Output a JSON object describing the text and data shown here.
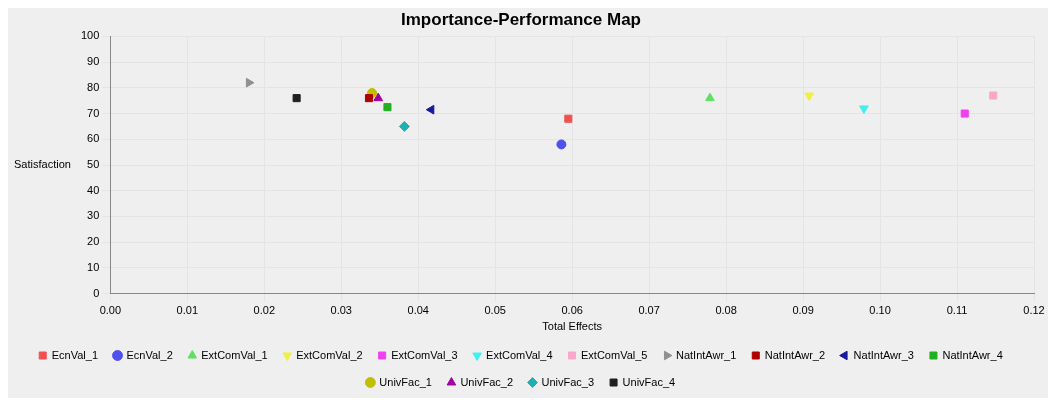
{
  "chart_data": {
    "type": "scatter",
    "title": "Importance-Performance Map",
    "xlabel": "Total Effects",
    "ylabel": "Satisfaction",
    "xlim": [
      0,
      0.12
    ],
    "xticks": [
      {
        "value": 0,
        "label": "0.00"
      },
      {
        "value": 0.01,
        "label": "0.01"
      },
      {
        "value": 0.02,
        "label": "0.02"
      },
      {
        "value": 0.03,
        "label": "0.03"
      },
      {
        "value": 0.04,
        "label": "0.04"
      },
      {
        "value": 0.05,
        "label": "0.05"
      },
      {
        "value": 0.06,
        "label": "0.06"
      },
      {
        "value": 0.07,
        "label": "0.07"
      },
      {
        "value": 0.08,
        "label": "0.08"
      },
      {
        "value": 0.09,
        "label": "0.09"
      },
      {
        "value": 0.1,
        "label": "0.10"
      },
      {
        "value": 0.11,
        "label": "0.11"
      },
      {
        "value": 0.12,
        "label": "0.12"
      }
    ],
    "ylim": [
      0,
      100
    ],
    "yticks": [
      0,
      10,
      20,
      30,
      40,
      50,
      60,
      70,
      80,
      90,
      100
    ],
    "grid": true,
    "legend": "bottom",
    "series": [
      {
        "name": "EcnVal_1",
        "color": "#f05050",
        "marker": "square",
        "x": [
          0.0595
        ],
        "values": [
          68
        ]
      },
      {
        "name": "EcnVal_2",
        "color": "#5050f0",
        "marker": "circle",
        "x": [
          0.0586
        ],
        "values": [
          58
        ]
      },
      {
        "name": "ExtComVal_1",
        "color": "#60e060",
        "marker": "triangle",
        "x": [
          0.0779
        ],
        "values": [
          76
        ]
      },
      {
        "name": "ExtComVal_2",
        "color": "#f0f040",
        "marker": "triangle-down",
        "x": [
          0.0908
        ],
        "values": [
          77
        ]
      },
      {
        "name": "ExtComVal_3",
        "color": "#f040f0",
        "marker": "square",
        "x": [
          0.111
        ],
        "values": [
          70
        ]
      },
      {
        "name": "ExtComVal_4",
        "color": "#40f0f0",
        "marker": "triangle-down",
        "x": [
          0.0979
        ],
        "values": [
          72
        ]
      },
      {
        "name": "ExtComVal_5",
        "color": "#f8a8c8",
        "marker": "square",
        "x": [
          0.1147
        ],
        "values": [
          77
        ]
      },
      {
        "name": "NatIntAwr_1",
        "color": "#909090",
        "marker": "triangle-right",
        "x": [
          0.018
        ],
        "values": [
          82
        ]
      },
      {
        "name": "NatIntAwr_2",
        "color": "#b00000",
        "marker": "square",
        "x": [
          0.0336
        ],
        "values": [
          76
        ]
      },
      {
        "name": "NatIntAwr_3",
        "color": "#1818a0",
        "marker": "triangle-left",
        "x": [
          0.0417
        ],
        "values": [
          71.5
        ]
      },
      {
        "name": "NatIntAwr_4",
        "color": "#20b020",
        "marker": "square",
        "x": [
          0.036
        ],
        "values": [
          72.5
        ]
      },
      {
        "name": "UnivFac_1",
        "color": "#c0c000",
        "marker": "circle",
        "x": [
          0.034
        ],
        "values": [
          78
        ]
      },
      {
        "name": "UnivFac_2",
        "color": "#a000a0",
        "marker": "triangle",
        "x": [
          0.0348
        ],
        "values": [
          76
        ]
      },
      {
        "name": "UnivFac_3",
        "color": "#20b0b0",
        "marker": "diamond",
        "x": [
          0.0382
        ],
        "values": [
          65
        ]
      },
      {
        "name": "UnivFac_4",
        "color": "#202020",
        "marker": "square",
        "x": [
          0.0242
        ],
        "values": [
          76
        ]
      }
    ]
  }
}
